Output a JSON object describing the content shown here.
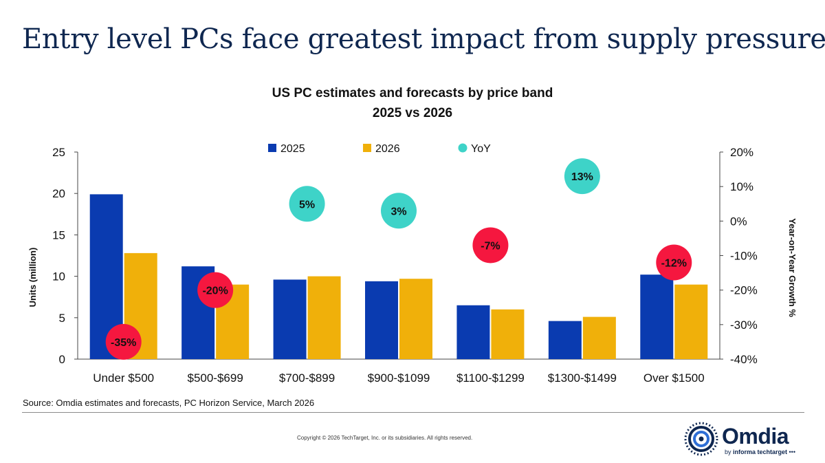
{
  "header": {
    "headline": "Entry level PCs face greatest impact from supply pressure"
  },
  "chart_data": {
    "type": "bar",
    "title": "US PC estimates and forecasts by price band",
    "subtitle": "2025 vs 2026",
    "categories": [
      "Under $500",
      "$500-$699",
      "$700-$899",
      "$900-$1099",
      "$1100-$1299",
      "$1300-$1499",
      "Over $1500"
    ],
    "series": [
      {
        "name": "2025",
        "color": "#0a3bb0",
        "values": [
          19.9,
          11.2,
          9.6,
          9.4,
          6.5,
          4.6,
          10.2
        ]
      },
      {
        "name": "2026",
        "color": "#f0b00a",
        "values": [
          12.8,
          9.0,
          10.0,
          9.7,
          6.0,
          5.1,
          9.0
        ]
      }
    ],
    "yoy": {
      "name": "YoY",
      "values": [
        -35,
        -20,
        5,
        3,
        -7,
        13,
        -12
      ],
      "labels": [
        "-35%",
        "-20%",
        "5%",
        "3%",
        "-7%",
        "13%",
        "-12%"
      ],
      "positive_color": "#3ed3c8",
      "negative_color": "#f5173f"
    },
    "ylabel": "Units (million)",
    "y2label": "Year-on-Year Growth %",
    "ylim": [
      0,
      25
    ],
    "y_ticks": [
      0,
      5,
      10,
      15,
      20,
      25
    ],
    "y2lim": [
      -40,
      20
    ],
    "y2_ticks": [
      -40,
      -30,
      -20,
      -10,
      0,
      10,
      20
    ],
    "y2_tick_labels": [
      "-40%",
      "-30%",
      "-20%",
      "-10%",
      "0%",
      "10%",
      "20%"
    ],
    "legend_position": "top-center",
    "grid": false
  },
  "footer": {
    "source": "Source: Omdia estimates and forecasts, PC Horizon Service, March 2026",
    "copyright": "Copyright © 2026 TechTarget, Inc. or its subsidiaries. All rights reserved.",
    "logo_word": "Omdia",
    "logo_sub_prefix": "by ",
    "logo_sub_brand": "informa techtarget"
  }
}
